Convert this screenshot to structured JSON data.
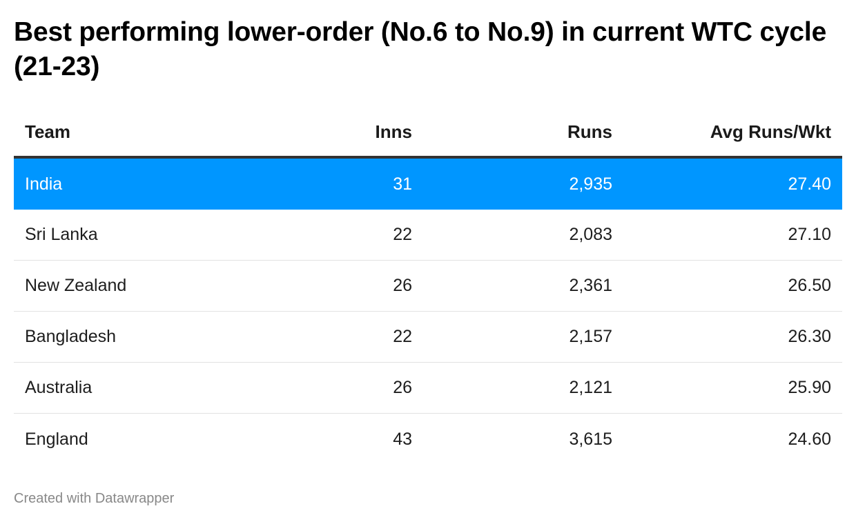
{
  "title": "Best performing lower-order (No.6 to No.9) in current WTC cycle (21-23)",
  "footer": "Created with Datawrapper",
  "colors": {
    "highlight": "#0096ff",
    "header_rule": "#333333",
    "row_rule": "#e2e2e2"
  },
  "chart_data": {
    "type": "table",
    "title": "Best performing lower-order (No.6 to No.9) in current WTC cycle (21-23)",
    "columns": [
      "Team",
      "Inns",
      "Runs",
      "Avg Runs/Wkt"
    ],
    "rows": [
      {
        "team": "India",
        "inns": "31",
        "runs": "2,935",
        "avg": "27.40",
        "highlighted": true
      },
      {
        "team": "Sri Lanka",
        "inns": "22",
        "runs": "2,083",
        "avg": "27.10",
        "highlighted": false
      },
      {
        "team": "New Zealand",
        "inns": "26",
        "runs": "2,361",
        "avg": "26.50",
        "highlighted": false
      },
      {
        "team": "Bangladesh",
        "inns": "22",
        "runs": "2,157",
        "avg": "26.30",
        "highlighted": false
      },
      {
        "team": "Australia",
        "inns": "26",
        "runs": "2,121",
        "avg": "25.90",
        "highlighted": false
      },
      {
        "team": "England",
        "inns": "43",
        "runs": "3,615",
        "avg": "24.60",
        "highlighted": false
      }
    ]
  }
}
